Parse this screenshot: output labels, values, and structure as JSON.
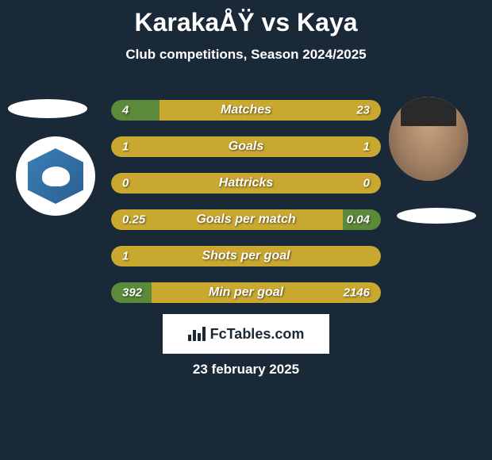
{
  "title": "KarakaÅŸ vs Kaya",
  "subtitle": "Club competitions, Season 2024/2025",
  "date": "23 february 2025",
  "footer": "FcTables.com",
  "colors": {
    "background": "#1a2937",
    "green": "#5a8a3a",
    "yellow": "#c9a82f",
    "text": "#ffffff"
  },
  "stats": [
    {
      "label": "Matches",
      "left_value": "4",
      "right_value": "23",
      "left_pct": 18,
      "right_pct": 82,
      "left_color": "#5a8a3a",
      "right_color": "#c9a82f"
    },
    {
      "label": "Goals",
      "left_value": "1",
      "right_value": "1",
      "left_pct": 50,
      "right_pct": 50,
      "left_color": "#c9a82f",
      "right_color": "#c9a82f"
    },
    {
      "label": "Hattricks",
      "left_value": "0",
      "right_value": "0",
      "left_pct": 100,
      "right_pct": 0,
      "left_color": "#c9a82f",
      "right_color": "#c9a82f"
    },
    {
      "label": "Goals per match",
      "left_value": "0.25",
      "right_value": "0.04",
      "left_pct": 86,
      "right_pct": 14,
      "left_color": "#c9a82f",
      "right_color": "#5a8a3a"
    },
    {
      "label": "Shots per goal",
      "left_value": "1",
      "right_value": "",
      "left_pct": 100,
      "right_pct": 0,
      "left_color": "#c9a82f",
      "right_color": "#c9a82f"
    },
    {
      "label": "Min per goal",
      "left_value": "392",
      "right_value": "2146",
      "left_pct": 15,
      "right_pct": 85,
      "left_color": "#5a8a3a",
      "right_color": "#c9a82f"
    }
  ]
}
